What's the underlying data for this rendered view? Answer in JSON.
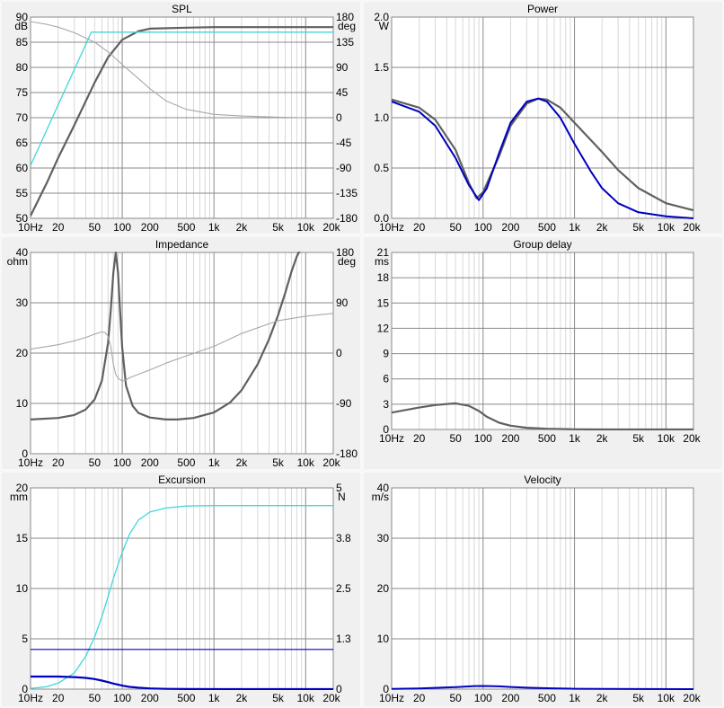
{
  "x_ticks": [
    "10Hz",
    "20",
    "50",
    "100",
    "200",
    "500",
    "1k",
    "2k",
    "5k",
    "10k",
    "20k"
  ],
  "colors": {
    "grid_major": "#8a8a8a",
    "grid_minor": "#d8d8d8",
    "dark_curve": "#606060",
    "phase_curve": "#a8a8a8",
    "cyan": "#40d8d8",
    "blue": "#0000c0",
    "panel_bg": "#ffffff",
    "window_bg": "#f0f0f0"
  },
  "chart_data": [
    {
      "id": "spl",
      "type": "line",
      "title": "SPL",
      "x_scale": "log",
      "xlim": [
        10,
        20000
      ],
      "left_axis": {
        "unit": "dB",
        "range": [
          50,
          90
        ],
        "ticks": [
          "90",
          "85",
          "80",
          "75",
          "70",
          "65",
          "60",
          "55",
          "50"
        ]
      },
      "right_axis": {
        "unit": "deg",
        "range": [
          -180,
          180
        ],
        "ticks": [
          "180",
          "135",
          "90",
          "45",
          "0",
          "-45",
          "-90",
          "-135",
          "-180"
        ]
      },
      "series": [
        {
          "axis": "left",
          "color": "dark_curve",
          "width": 2.2,
          "x": [
            10,
            15,
            20,
            30,
            50,
            70,
            100,
            150,
            200,
            500,
            1000,
            5000,
            20000
          ],
          "y": [
            50.5,
            57,
            62,
            68.5,
            77,
            82,
            85.5,
            87.2,
            87.7,
            87.9,
            88,
            88,
            88
          ]
        },
        {
          "axis": "left",
          "color": "cyan",
          "width": 1.3,
          "x": [
            10,
            46,
            20000
          ],
          "y": [
            60.5,
            87,
            87
          ]
        },
        {
          "axis": "right",
          "color": "phase_curve",
          "width": 1.1,
          "x": [
            10,
            15,
            20,
            30,
            50,
            70,
            100,
            150,
            200,
            300,
            500,
            1000,
            2000,
            5000,
            10000
          ],
          "y": [
            172,
            167,
            162,
            152,
            135,
            118,
            95,
            70,
            52,
            30,
            15,
            6,
            3,
            1,
            0
          ]
        }
      ]
    },
    {
      "id": "power",
      "type": "line",
      "title": "Power",
      "x_scale": "log",
      "xlim": [
        10,
        20000
      ],
      "left_axis": {
        "unit": "W",
        "range": [
          0,
          2
        ],
        "ticks": [
          "2.0",
          "1.5",
          "1.0",
          "0.5",
          "0.0"
        ]
      },
      "series": [
        {
          "axis": "left",
          "color": "dark_curve",
          "width": 2.2,
          "x": [
            10,
            20,
            30,
            50,
            70,
            85,
            100,
            150,
            200,
            300,
            400,
            500,
            700,
            1000,
            1500,
            2000,
            3000,
            5000,
            10000,
            20000
          ],
          "y": [
            1.18,
            1.1,
            0.98,
            0.68,
            0.35,
            0.2,
            0.26,
            0.62,
            0.92,
            1.14,
            1.19,
            1.18,
            1.1,
            0.95,
            0.78,
            0.66,
            0.48,
            0.3,
            0.15,
            0.08
          ]
        },
        {
          "axis": "left",
          "color": "blue",
          "width": 2.0,
          "x": [
            10,
            20,
            30,
            50,
            70,
            90,
            110,
            150,
            200,
            300,
            400,
            500,
            700,
            1000,
            1500,
            2000,
            3000,
            5000,
            10000,
            20000
          ],
          "y": [
            1.16,
            1.06,
            0.92,
            0.6,
            0.33,
            0.18,
            0.3,
            0.65,
            0.95,
            1.16,
            1.19,
            1.16,
            1.0,
            0.74,
            0.47,
            0.3,
            0.15,
            0.06,
            0.02,
            0.0
          ]
        }
      ]
    },
    {
      "id": "impedance",
      "type": "line",
      "title": "Impedance",
      "x_scale": "log",
      "xlim": [
        10,
        20000
      ],
      "left_axis": {
        "unit": "ohm",
        "range": [
          0,
          40
        ],
        "ticks": [
          "40",
          "30",
          "20",
          "10",
          "0"
        ]
      },
      "right_axis": {
        "unit": "deg",
        "range": [
          -180,
          180
        ],
        "ticks": [
          "180",
          "90",
          "0",
          "-90",
          "-180"
        ]
      },
      "series": [
        {
          "axis": "left",
          "color": "dark_curve",
          "width": 2.2,
          "x": [
            10,
            20,
            30,
            40,
            50,
            60,
            70,
            75,
            80,
            85,
            90,
            95,
            100,
            110,
            130,
            150,
            200,
            300,
            400,
            600,
            1000,
            1500,
            2000,
            3000,
            4000,
            5000,
            6000,
            7000,
            8000,
            9000
          ],
          "y": [
            6.8,
            7.1,
            7.7,
            8.8,
            10.8,
            14.5,
            22,
            28.5,
            36,
            40,
            36,
            28,
            21,
            13.5,
            9.5,
            8.1,
            7.2,
            6.8,
            6.8,
            7.1,
            8.2,
            10.2,
            12.6,
            17.8,
            22.8,
            27.5,
            32,
            36.2,
            39.2,
            41
          ]
        },
        {
          "axis": "right",
          "color": "phase_curve",
          "width": 1.1,
          "x": [
            10,
            20,
            30,
            40,
            50,
            60,
            65,
            70,
            75,
            80,
            85,
            90,
            100,
            110,
            120,
            150,
            200,
            300,
            500,
            1000,
            2000,
            5000,
            10000,
            20000
          ],
          "y": [
            7,
            15,
            22,
            28,
            34,
            38,
            37,
            30,
            12,
            -20,
            -38,
            -45,
            -50,
            -48,
            -44,
            -38,
            -30,
            -18,
            -5,
            12,
            35,
            58,
            66,
            71
          ]
        }
      ]
    },
    {
      "id": "group_delay",
      "type": "line",
      "title": "Group delay",
      "x_scale": "log",
      "xlim": [
        10,
        20000
      ],
      "left_axis": {
        "unit": "ms",
        "range": [
          0,
          21
        ],
        "ticks": [
          "21",
          "18",
          "15",
          "12",
          "9",
          "6",
          "3",
          "0"
        ]
      },
      "series": [
        {
          "axis": "left",
          "color": "dark_curve",
          "width": 2.2,
          "x": [
            10,
            20,
            30,
            50,
            70,
            90,
            110,
            150,
            200,
            300,
            500,
            1000,
            2000,
            20000
          ],
          "y": [
            2.0,
            2.6,
            2.9,
            3.1,
            2.8,
            2.2,
            1.5,
            0.8,
            0.45,
            0.2,
            0.08,
            0.02,
            0.0,
            0.0
          ]
        }
      ]
    },
    {
      "id": "excursion",
      "type": "line",
      "title": "Excursion",
      "x_scale": "log",
      "xlim": [
        10,
        20000
      ],
      "left_axis": {
        "unit": "mm",
        "range": [
          0,
          20
        ],
        "ticks": [
          "20",
          "15",
          "10",
          "5",
          "0"
        ]
      },
      "right_axis": {
        "unit": "N",
        "range": [
          0,
          5
        ],
        "ticks": [
          "5",
          "3.8",
          "2.5",
          "1.3",
          "0"
        ]
      },
      "series": [
        {
          "axis": "right",
          "color": "cyan",
          "width": 1.3,
          "x": [
            10,
            15,
            20,
            30,
            40,
            50,
            60,
            70,
            80,
            100,
            120,
            150,
            200,
            300,
            500,
            1000,
            20000
          ],
          "y": [
            0.02,
            0.06,
            0.15,
            0.4,
            0.82,
            1.3,
            1.8,
            2.3,
            2.75,
            3.4,
            3.85,
            4.2,
            4.4,
            4.5,
            4.55,
            4.56,
            4.56
          ]
        },
        {
          "axis": "left",
          "color": "blue",
          "width": 1.2,
          "x": [
            10,
            20000
          ],
          "y": [
            3.95,
            3.95
          ]
        },
        {
          "axis": "left",
          "color": "blue",
          "width": 2.2,
          "x": [
            10,
            20,
            30,
            40,
            50,
            60,
            70,
            80,
            100,
            120,
            150,
            200,
            300,
            500,
            1000,
            20000
          ],
          "y": [
            1.25,
            1.25,
            1.2,
            1.12,
            1.0,
            0.85,
            0.7,
            0.55,
            0.35,
            0.22,
            0.14,
            0.07,
            0.03,
            0.01,
            0.0,
            0.0
          ]
        }
      ]
    },
    {
      "id": "velocity",
      "type": "line",
      "title": "Velocity",
      "x_scale": "log",
      "xlim": [
        10,
        20000
      ],
      "left_axis": {
        "unit": "m/s",
        "range": [
          0,
          40
        ],
        "ticks": [
          "40",
          "30",
          "20",
          "10",
          "0"
        ]
      },
      "series": [
        {
          "axis": "left",
          "color": "blue",
          "width": 2.0,
          "x": [
            10,
            20,
            50,
            80,
            100,
            150,
            200,
            300,
            500,
            1000,
            2000,
            5000,
            20000
          ],
          "y": [
            0.05,
            0.15,
            0.4,
            0.6,
            0.62,
            0.55,
            0.42,
            0.28,
            0.17,
            0.08,
            0.04,
            0.01,
            0.0
          ]
        }
      ]
    }
  ]
}
